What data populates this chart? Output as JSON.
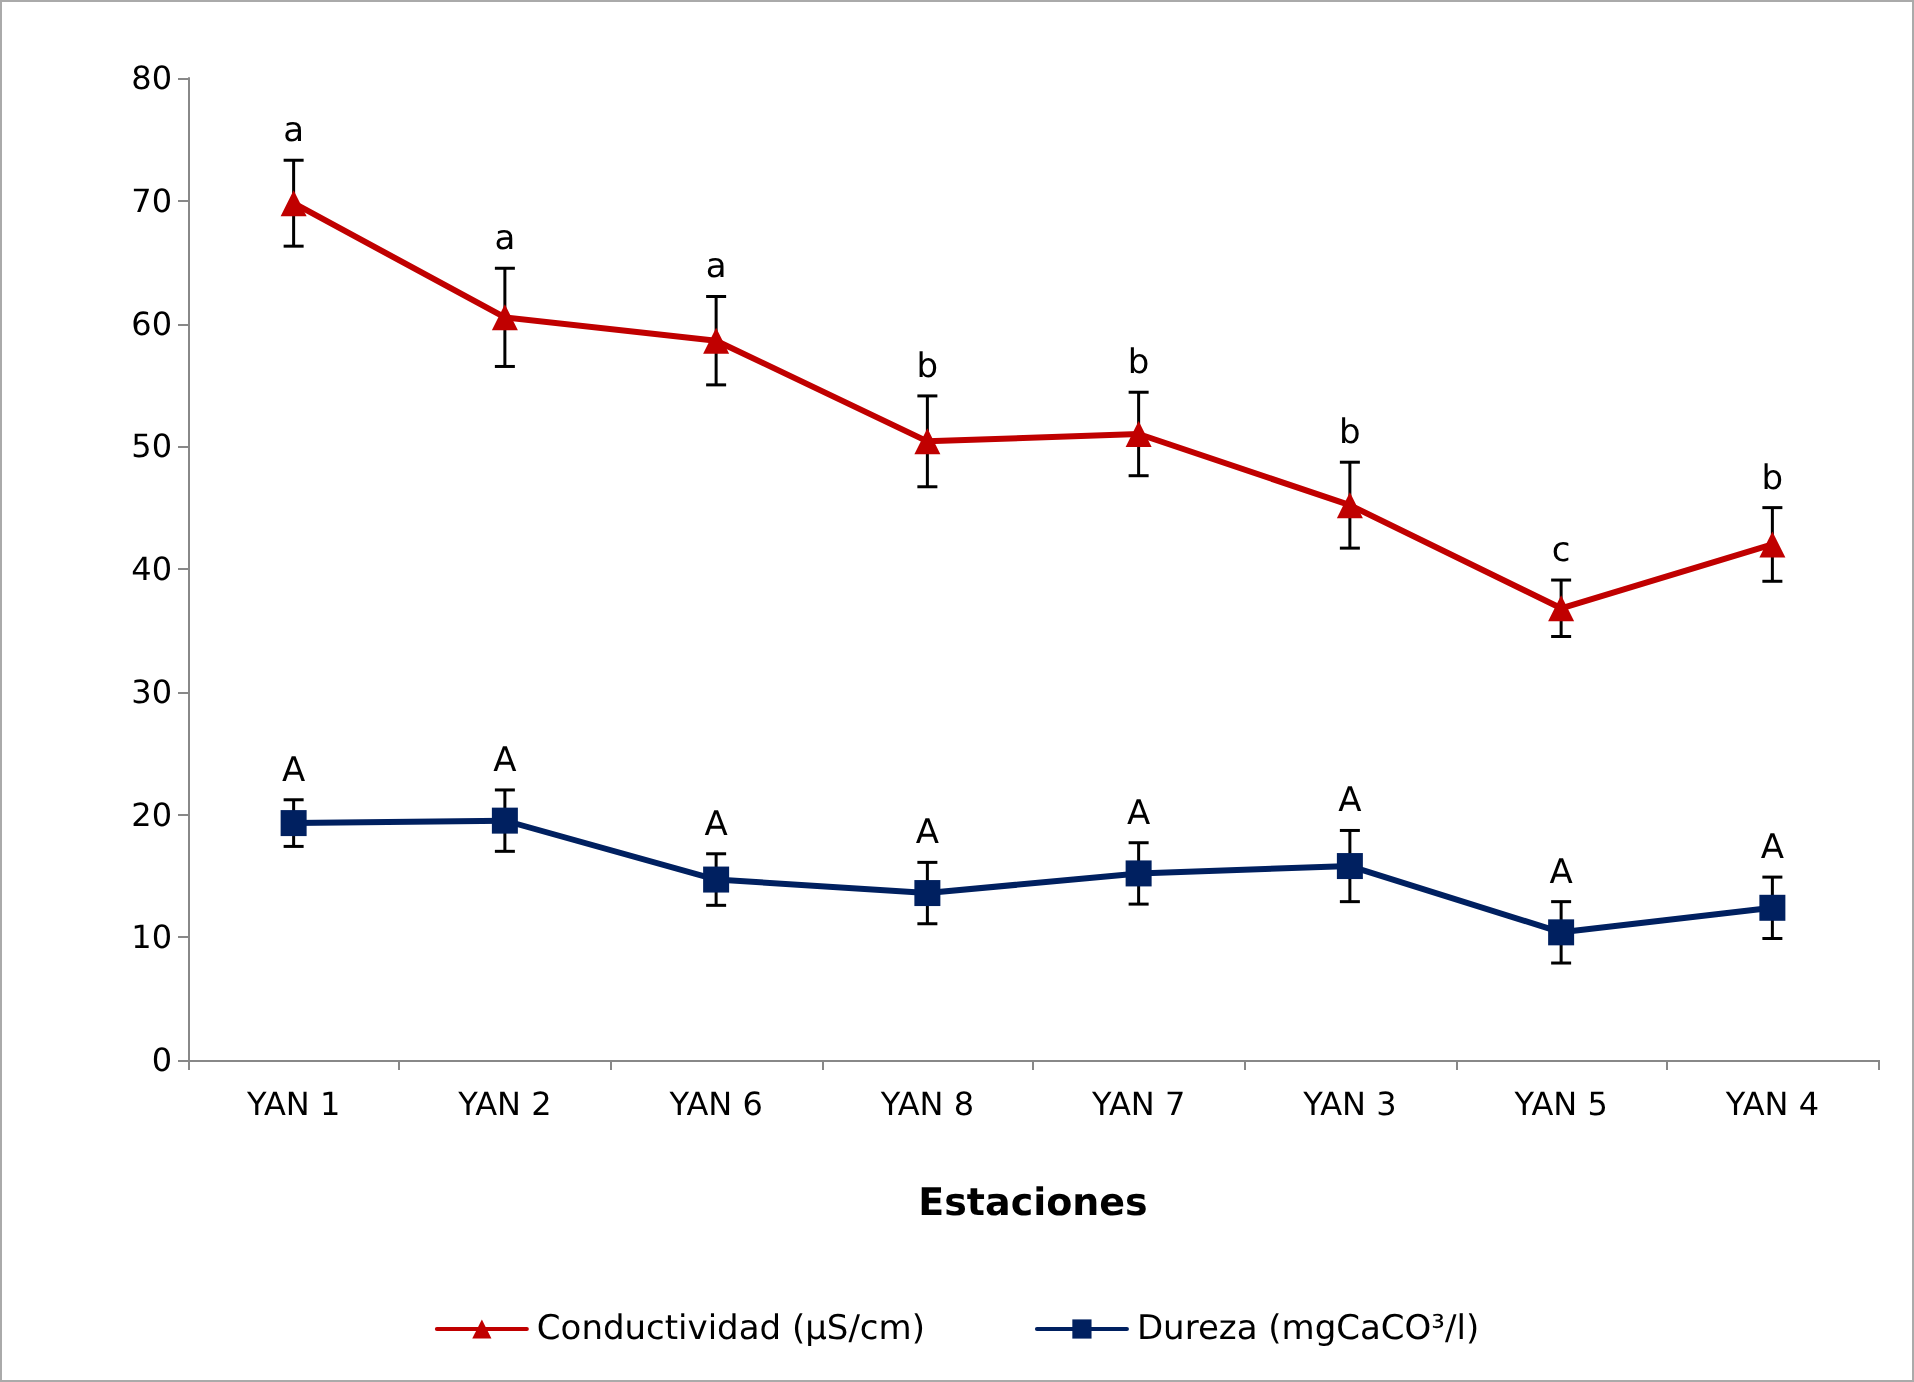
{
  "chart_data": {
    "type": "line",
    "xlabel": "Estaciones",
    "categories": [
      "YAN 1",
      "YAN 2",
      "YAN 6",
      "YAN 8",
      "YAN 7",
      "YAN 3",
      "YAN 5",
      "YAN 4"
    ],
    "series": [
      {
        "name": "Conductividad (µS/cm)",
        "color": "#c00000",
        "marker": "triangle",
        "values": [
          69.8,
          60.5,
          58.6,
          50.4,
          51.0,
          45.2,
          36.8,
          42.0
        ],
        "errors": [
          3.5,
          4.0,
          3.6,
          3.7,
          3.4,
          3.5,
          2.3,
          3.0
        ]
      },
      {
        "name": "Dureza (mgCaCO³/l)",
        "color": "#002060",
        "marker": "square",
        "values": [
          19.3,
          19.5,
          14.7,
          13.6,
          15.2,
          15.8,
          10.4,
          12.4
        ],
        "errors": [
          1.9,
          2.5,
          2.1,
          2.5,
          2.5,
          2.9,
          2.5,
          2.5
        ]
      }
    ],
    "annotations": [
      {
        "text": "a",
        "x": "YAN 1",
        "y": 69.8
      },
      {
        "text": "a",
        "x": "YAN 2",
        "y": 60.5
      },
      {
        "text": "a",
        "x": "YAN 6",
        "y": 58.6
      },
      {
        "text": "b",
        "x": "YAN 8",
        "y": 50.4
      },
      {
        "text": "b",
        "x": "YAN 7",
        "y": 51.0
      },
      {
        "text": "b",
        "x": "YAN 3",
        "y": 45.2
      },
      {
        "text": "c",
        "x": "YAN 5",
        "y": 36.8
      },
      {
        "text": "b",
        "x": "YAN 4",
        "y": 42.0
      },
      {
        "text": "A",
        "x": "YAN 1",
        "y": 19.3
      },
      {
        "text": "A",
        "x": "YAN 2",
        "y": 19.5
      },
      {
        "text": "A",
        "x": "YAN 6",
        "y": 14.7
      },
      {
        "text": "A",
        "x": "YAN 8",
        "y": 13.6
      },
      {
        "text": "A",
        "x": "YAN 7",
        "y": 15.2
      },
      {
        "text": "A",
        "x": "YAN 3",
        "y": 15.8
      },
      {
        "text": "A",
        "x": "YAN 5",
        "y": 10.4
      },
      {
        "text": "A",
        "x": "YAN 4",
        "y": 12.4
      }
    ],
    "ylim": [
      0,
      80
    ],
    "yticks": [
      0,
      10,
      20,
      30,
      40,
      50,
      60,
      70,
      80
    ],
    "grid": false,
    "legend": "bottom",
    "line_style": "solid"
  }
}
